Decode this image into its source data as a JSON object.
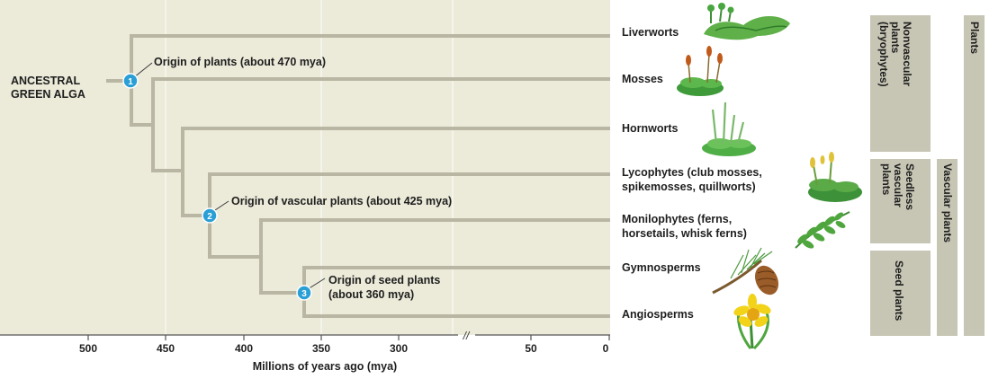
{
  "ancestor": {
    "line1": "ANCESTRAL",
    "line2": "GREEN ALGA"
  },
  "origins": {
    "plants": {
      "number": "1",
      "label": "Origin of plants (about 470 mya)"
    },
    "vascular": {
      "number": "2",
      "label": "Origin of vascular plants (about 425 mya)"
    },
    "seed": {
      "number": "3",
      "line1": "Origin of seed plants",
      "line2": "(about 360 mya)"
    }
  },
  "taxa": {
    "liverworts": {
      "line1": "Liverworts"
    },
    "mosses": {
      "line1": "Mosses"
    },
    "hornworts": {
      "line1": "Hornworts"
    },
    "lycophytes": {
      "line1": "Lycophytes (club mosses,",
      "line2": "spikemosses, quillworts)"
    },
    "monilophytes": {
      "line1": "Monilophytes (ferns,",
      "line2": "horsetails, whisk ferns)"
    },
    "gymnosperms": {
      "line1": "Gymnosperms"
    },
    "angiosperms": {
      "line1": "Angiosperms"
    }
  },
  "axis": {
    "label": "Millions of years ago (mya)",
    "ticks": [
      "500",
      "450",
      "400",
      "350",
      "300",
      "50",
      "0"
    ],
    "break_mark": "//"
  },
  "groups": {
    "nonvascular": "Nonvascular\nplants\n(bryophytes)",
    "seedless": "Seedless\nvascular\nplants",
    "seed": "Seed plants",
    "vascular": "Vascular plants",
    "plants": "Plants"
  },
  "colors": {
    "panel": "#ecead9",
    "grid": "#f7f6ee",
    "branch": "#b9b6a3",
    "node": "#2a9fd6",
    "bracket": "#c7c5b4",
    "text": "#1e1e1e"
  },
  "icons": [
    "liverwort-plant-icon",
    "moss-plant-icon",
    "hornwort-plant-icon",
    "lycophyte-plant-icon",
    "fern-plant-icon",
    "pine-cone-icon",
    "daffodil-flower-icon"
  ]
}
